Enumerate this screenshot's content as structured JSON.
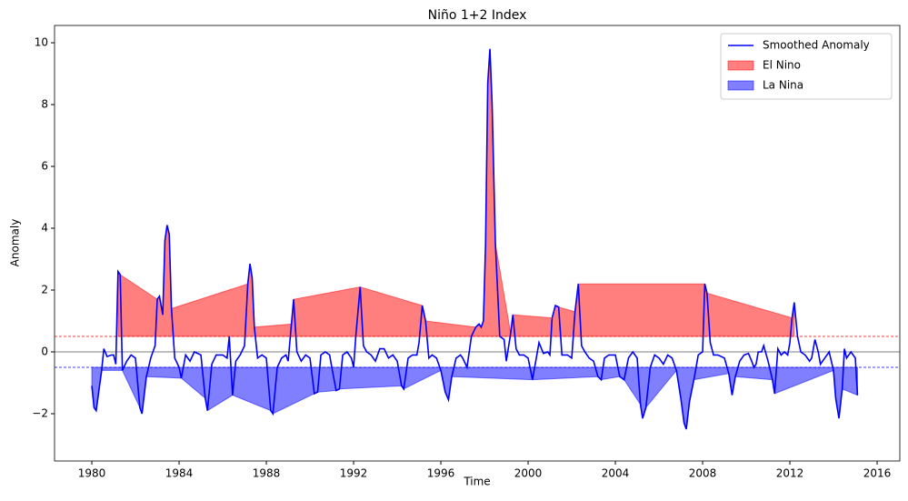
{
  "chart_data": {
    "type": "line",
    "title": "Niño 1+2 Index",
    "x_label": "Time",
    "y_label": "Anomaly",
    "x": [
      1980.0,
      1980.1,
      1980.2,
      1980.45,
      1980.55,
      1980.7,
      1980.9,
      1981.0,
      1981.1,
      1981.2,
      1981.3,
      1981.4,
      1981.6,
      1981.8,
      1982.0,
      1982.2,
      1982.3,
      1982.5,
      1982.7,
      1982.9,
      1983.0,
      1983.1,
      1983.25,
      1983.35,
      1983.45,
      1983.55,
      1983.65,
      1983.8,
      1984.0,
      1984.1,
      1984.3,
      1984.5,
      1984.7,
      1985.0,
      1985.2,
      1985.3,
      1985.5,
      1985.7,
      1986.0,
      1986.2,
      1986.3,
      1986.45,
      1986.6,
      1986.8,
      1987.0,
      1987.15,
      1987.25,
      1987.35,
      1987.45,
      1987.6,
      1987.8,
      1988.0,
      1988.2,
      1988.3,
      1988.5,
      1988.7,
      1988.9,
      1989.0,
      1989.15,
      1989.25,
      1989.4,
      1989.6,
      1989.8,
      1990.0,
      1990.2,
      1990.35,
      1990.5,
      1990.7,
      1990.9,
      1991.0,
      1991.2,
      1991.35,
      1991.5,
      1991.7,
      1991.9,
      1992.0,
      1992.1,
      1992.3,
      1992.45,
      1992.6,
      1992.8,
      1993.0,
      1993.2,
      1993.4,
      1993.6,
      1993.8,
      1994.0,
      1994.2,
      1994.3,
      1994.5,
      1994.7,
      1994.9,
      1995.0,
      1995.15,
      1995.3,
      1995.45,
      1995.6,
      1995.8,
      1996.0,
      1996.2,
      1996.35,
      1996.5,
      1996.7,
      1996.9,
      1997.0,
      1997.2,
      1997.4,
      1997.6,
      1997.75,
      1997.85,
      1997.95,
      1998.05,
      1998.15,
      1998.25,
      1998.35,
      1998.5,
      1998.7,
      1998.9,
      1999.0,
      1999.2,
      1999.3,
      1999.45,
      1999.6,
      1999.8,
      2000.0,
      2000.2,
      2000.4,
      2000.5,
      2000.7,
      2000.9,
      2001.0,
      2001.1,
      2001.25,
      2001.4,
      2001.55,
      2001.8,
      2002.0,
      2002.15,
      2002.3,
      2002.45,
      2002.6,
      2002.8,
      2003.0,
      2003.2,
      2003.35,
      2003.5,
      2003.7,
      2003.9,
      2004.0,
      2004.2,
      2004.4,
      2004.6,
      2004.8,
      2005.0,
      2005.15,
      2005.25,
      2005.4,
      2005.6,
      2005.8,
      2006.0,
      2006.2,
      2006.4,
      2006.6,
      2006.8,
      2007.0,
      2007.15,
      2007.25,
      2007.4,
      2007.6,
      2007.8,
      2008.0,
      2008.1,
      2008.2,
      2008.35,
      2008.5,
      2008.7,
      2009.0,
      2009.2,
      2009.35,
      2009.5,
      2009.7,
      2009.9,
      2010.1,
      2010.25,
      2010.35,
      2010.45,
      2010.55,
      2010.7,
      2010.8,
      2011.0,
      2011.2,
      2011.3,
      2011.45,
      2011.6,
      2011.75,
      2011.9,
      2012.0,
      2012.1,
      2012.2,
      2012.35,
      2012.5,
      2012.7,
      2012.9,
      2013.0,
      2013.15,
      2013.3,
      2013.4,
      2013.6,
      2013.8,
      2014.0,
      2014.1,
      2014.25,
      2014.4,
      2014.5,
      2014.6,
      2014.8,
      2015.0,
      2015.1
    ],
    "series": [
      {
        "name": "Smoothed Anomaly",
        "color": "#0000ff",
        "values": [
          -1.1,
          -1.8,
          -1.9,
          -0.6,
          0.1,
          -0.15,
          -0.1,
          -0.1,
          -0.4,
          2.6,
          2.5,
          -0.6,
          -0.3,
          -0.1,
          -0.2,
          -1.8,
          -2.0,
          -0.8,
          -0.2,
          0.2,
          1.7,
          1.8,
          1.2,
          3.6,
          4.1,
          3.8,
          1.4,
          -0.2,
          -0.5,
          -0.85,
          -0.1,
          -0.3,
          0.0,
          -0.1,
          -1.5,
          -1.9,
          -0.4,
          -0.1,
          -0.1,
          -0.2,
          0.5,
          -1.4,
          -0.3,
          -0.1,
          0.2,
          2.2,
          2.85,
          2.4,
          0.8,
          -0.2,
          -0.1,
          -0.2,
          -1.9,
          -2.0,
          -0.5,
          -0.2,
          -0.1,
          -0.3,
          0.9,
          1.7,
          0.0,
          -0.3,
          -0.1,
          -0.2,
          -1.35,
          -1.3,
          -0.1,
          0.0,
          -0.1,
          -0.5,
          -1.25,
          -1.2,
          -0.1,
          0.0,
          -0.2,
          -0.5,
          0.5,
          2.1,
          0.2,
          0.0,
          -0.1,
          -0.3,
          0.1,
          0.1,
          -0.2,
          -0.1,
          -0.3,
          -1.1,
          -1.2,
          -0.2,
          -0.1,
          -0.1,
          0.3,
          1.5,
          1.0,
          -0.2,
          -0.1,
          -0.2,
          -0.6,
          -1.3,
          -1.55,
          -0.8,
          -0.2,
          -0.1,
          -0.2,
          -0.5,
          0.5,
          0.8,
          0.9,
          0.8,
          1.0,
          3.5,
          8.7,
          9.8,
          8.0,
          3.5,
          0.5,
          0.4,
          -0.3,
          0.6,
          1.2,
          0.1,
          -0.1,
          -0.1,
          -0.2,
          -0.9,
          -0.1,
          0.3,
          -0.05,
          0.0,
          -0.1,
          1.1,
          1.5,
          1.45,
          -0.1,
          -0.1,
          -0.2,
          1.3,
          2.2,
          0.2,
          0.0,
          -0.2,
          -0.3,
          -0.8,
          -0.9,
          -0.2,
          -0.1,
          -0.1,
          -0.1,
          -0.8,
          -0.9,
          -0.2,
          0.0,
          -0.2,
          -1.7,
          -2.15,
          -1.8,
          -0.5,
          -0.1,
          -0.2,
          -0.4,
          -0.1,
          -0.2,
          -0.6,
          -1.5,
          -2.3,
          -2.5,
          -1.6,
          -0.9,
          -0.1,
          0.0,
          2.2,
          1.9,
          0.3,
          -0.1,
          -0.1,
          -0.2,
          -0.7,
          -1.4,
          -0.8,
          -0.3,
          -0.1,
          -0.05,
          -0.3,
          -0.5,
          -0.4,
          0.0,
          0.0,
          0.2,
          -0.3,
          -0.9,
          -1.35,
          0.1,
          -0.1,
          0.0,
          -0.1,
          0.3,
          1.1,
          1.6,
          0.5,
          0.0,
          -0.1,
          -0.3,
          -0.2,
          0.4,
          0.0,
          -0.4,
          -0.2,
          0.0,
          -0.6,
          -1.5,
          -2.15,
          -1.2,
          0.1,
          -0.2,
          0.0,
          -0.2,
          -1.4
        ]
      },
      {
        "name": "El Nino",
        "color": "#ff0000",
        "threshold": 0.5,
        "above": true
      },
      {
        "name": "La Nina",
        "color": "#0000ff",
        "threshold": -0.5,
        "above": false
      }
    ],
    "xlim": [
      1978.29,
      2017.04
    ],
    "ylim": [
      -3.53,
      10.56
    ],
    "xticks": [
      1980,
      1984,
      1988,
      1992,
      1996,
      2000,
      2004,
      2008,
      2012,
      2016
    ],
    "yticks": [
      {
        "value": -2,
        "label": "−2"
      },
      0,
      2,
      4,
      6,
      8,
      10
    ],
    "zero_line": 0,
    "legend": "upper-right"
  }
}
